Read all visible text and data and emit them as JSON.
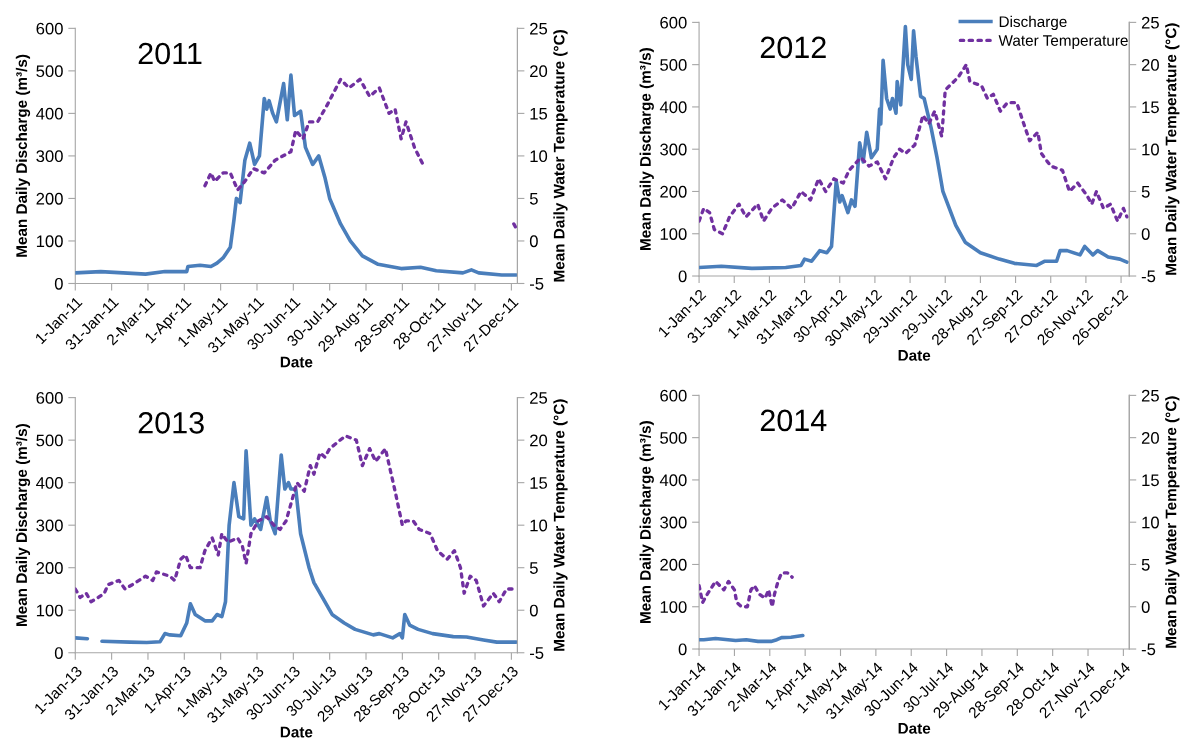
{
  "chart_data": [
    {
      "type": "line",
      "title": "2011",
      "xlabel": "Date",
      "ylabel": "Mean Daily Discharge (m³/s)",
      "y2label": "Mean Daily Water Temperature (°C)",
      "xlim": [
        "2011-01-01",
        "2012-01-01"
      ],
      "ylim": [
        0,
        600
      ],
      "yticks": [
        0,
        100,
        200,
        300,
        400,
        500,
        600
      ],
      "y2lim": [
        -5,
        25
      ],
      "y2ticks": [
        -5,
        0,
        5,
        10,
        15,
        20,
        25
      ],
      "xticks": [
        {
          "value": "2011-01-01",
          "label": "1-Jan-11"
        },
        {
          "value": "2011-01-31",
          "label": "31-Jan-11"
        },
        {
          "value": "2011-03-02",
          "label": "2-Mar-11"
        },
        {
          "value": "2011-04-01",
          "label": "1-Apr-11"
        },
        {
          "value": "2011-05-01",
          "label": "1-May-11"
        },
        {
          "value": "2011-05-31",
          "label": "31-May-11"
        },
        {
          "value": "2011-06-30",
          "label": "30-Jun-11"
        },
        {
          "value": "2011-07-30",
          "label": "30-Jul-11"
        },
        {
          "value": "2011-08-29",
          "label": "29-Aug-11"
        },
        {
          "value": "2011-09-28",
          "label": "28-Sep-11"
        },
        {
          "value": "2011-10-28",
          "label": "28-Oct-11"
        },
        {
          "value": "2011-11-27",
          "label": "27-Nov-11"
        },
        {
          "value": "2011-12-27",
          "label": "27-Dec-11"
        }
      ],
      "series": [
        {
          "color": "#4a7ebb",
          "line_style": "solid",
          "x": [
            "2011-01-01",
            "2011-01-22",
            "2011-02-28",
            "2011-03-16",
            "2011-04-03",
            "2011-04-04",
            "2011-04-14",
            "2011-04-23",
            "2011-04-28",
            "2011-05-03",
            "2011-05-09",
            "2011-05-12",
            "2011-05-14",
            "2011-05-17",
            "2011-05-21",
            "2011-05-25",
            "2011-05-29",
            "2011-06-02",
            "2011-06-06",
            "2011-06-08",
            "2011-06-10",
            "2011-06-13",
            "2011-06-16",
            "2011-06-22",
            "2011-06-25",
            "2011-06-28",
            "2011-07-01",
            "2011-07-06",
            "2011-07-10",
            "2011-07-16",
            "2011-07-21",
            "2011-07-26",
            "2011-07-30",
            "2011-08-08",
            "2011-08-16",
            "2011-08-26",
            "2011-09-08",
            "2011-09-27",
            "2011-10-13",
            "2011-10-26",
            "2011-11-17",
            "2011-11-24",
            "2011-11-30",
            "2011-12-19",
            "2011-12-31"
          ],
          "values": [
            25,
            28,
            22,
            28,
            28,
            40,
            43,
            40,
            48,
            60,
            85,
            150,
            200,
            190,
            290,
            330,
            280,
            300,
            435,
            410,
            430,
            400,
            380,
            470,
            385,
            490,
            395,
            405,
            320,
            280,
            300,
            250,
            200,
            140,
            100,
            65,
            45,
            35,
            38,
            30,
            25,
            32,
            25,
            20,
            20
          ]
        },
        {
          "color": "#7030a0",
          "line_style": "dotted",
          "axis": "y2",
          "x": [
            "2011-04-18",
            "2011-04-23",
            "2011-04-26",
            "2011-05-03",
            "2011-05-09",
            "2011-05-15",
            "2011-05-21",
            "2011-05-28",
            "2011-06-06",
            "2011-06-15",
            "2011-06-28",
            "2011-07-02",
            "2011-07-08",
            "2011-07-13",
            "2011-07-20",
            "2011-07-28",
            "2011-08-08",
            "2011-08-15",
            "2011-08-24",
            "2011-09-01",
            "2011-09-09",
            "2011-09-17",
            "2011-09-22",
            "2011-09-27",
            "2011-10-01",
            "2011-10-08",
            "2011-10-15",
            "2011-11-20",
            "2011-12-29",
            "2011-12-31"
          ],
          "values": [
            6.5,
            8,
            7,
            8,
            8,
            6,
            7,
            8.5,
            8,
            9.5,
            10.5,
            13,
            12,
            14,
            14,
            16,
            19,
            18,
            19,
            17,
            18,
            15,
            15.5,
            12,
            14,
            11,
            9,
            null,
            2,
            1.5
          ]
        }
      ]
    },
    {
      "type": "line",
      "title": "2012",
      "xlabel": "Date",
      "ylabel": "Mean Daily Discharge (m³/s)",
      "y2label": "Mean Daily Water Temperature (°C)",
      "legend": "top right",
      "xlim": [
        "2012-01-01",
        "2013-01-02"
      ],
      "ylim": [
        0,
        600
      ],
      "yticks": [
        0,
        100,
        200,
        300,
        400,
        500,
        600
      ],
      "y2lim": [
        -5,
        25
      ],
      "y2ticks": [
        -5,
        0,
        5,
        10,
        15,
        20,
        25
      ],
      "xticks": [
        {
          "value": "2012-01-01",
          "label": "1-Jan-12"
        },
        {
          "value": "2012-01-31",
          "label": "31-Jan-12"
        },
        {
          "value": "2012-03-01",
          "label": "1-Mar-12"
        },
        {
          "value": "2012-03-31",
          "label": "31-Mar-12"
        },
        {
          "value": "2012-04-30",
          "label": "30-Apr-12"
        },
        {
          "value": "2012-05-30",
          "label": "30-May-12"
        },
        {
          "value": "2012-06-29",
          "label": "29-Jun-12"
        },
        {
          "value": "2012-07-29",
          "label": "29-Jul-12"
        },
        {
          "value": "2012-08-28",
          "label": "28-Aug-12"
        },
        {
          "value": "2012-09-27",
          "label": "27-Sep-12"
        },
        {
          "value": "2012-10-27",
          "label": "27-Oct-12"
        },
        {
          "value": "2012-11-26",
          "label": "26-Nov-12"
        },
        {
          "value": "2012-12-26",
          "label": "26-Dec-12"
        }
      ],
      "series": [
        {
          "name": "Discharge",
          "color": "#4a7ebb",
          "line_style": "solid",
          "x": [
            "2012-01-01",
            "2012-01-20",
            "2012-02-15",
            "2012-03-15",
            "2012-03-28",
            "2012-03-31",
            "2012-04-06",
            "2012-04-13",
            "2012-04-19",
            "2012-04-23",
            "2012-04-27",
            "2012-04-30",
            "2012-05-02",
            "2012-05-07",
            "2012-05-10",
            "2012-05-13",
            "2012-05-17",
            "2012-05-20",
            "2012-05-23",
            "2012-05-27",
            "2012-06-01",
            "2012-06-03",
            "2012-06-04",
            "2012-06-06",
            "2012-06-09",
            "2012-06-12",
            "2012-06-14",
            "2012-06-17",
            "2012-06-18",
            "2012-06-21",
            "2012-06-25",
            "2012-06-27",
            "2012-06-30",
            "2012-07-02",
            "2012-07-04",
            "2012-07-08",
            "2012-07-11",
            "2012-07-17",
            "2012-07-22",
            "2012-07-27",
            "2012-08-07",
            "2012-08-15",
            "2012-08-28",
            "2012-09-13",
            "2012-09-26",
            "2012-10-15",
            "2012-10-22",
            "2012-11-01",
            "2012-11-04",
            "2012-11-10",
            "2012-11-21",
            "2012-11-25",
            "2012-12-02",
            "2012-12-06",
            "2012-12-15",
            "2012-12-25",
            "2012-12-31"
          ],
          "values": [
            20,
            23,
            18,
            20,
            25,
            40,
            35,
            60,
            55,
            70,
            225,
            175,
            190,
            150,
            180,
            165,
            315,
            270,
            340,
            280,
            300,
            395,
            360,
            510,
            420,
            395,
            420,
            385,
            460,
            405,
            590,
            500,
            465,
            580,
            520,
            425,
            420,
            350,
            280,
            200,
            120,
            80,
            55,
            40,
            30,
            25,
            35,
            35,
            60,
            60,
            50,
            70,
            50,
            60,
            45,
            40,
            33
          ]
        },
        {
          "name": "Water Temperature",
          "color": "#7030a0",
          "line_style": "dotted",
          "axis": "y2",
          "x": [
            "2012-01-01",
            "2012-01-05",
            "2012-01-10",
            "2012-01-14",
            "2012-01-21",
            "2012-01-27",
            "2012-02-04",
            "2012-02-10",
            "2012-02-20",
            "2012-02-25",
            "2012-03-03",
            "2012-03-12",
            "2012-03-20",
            "2012-03-28",
            "2012-04-05",
            "2012-04-12",
            "2012-04-18",
            "2012-04-25",
            "2012-05-03",
            "2012-05-08",
            "2012-05-18",
            "2012-05-25",
            "2012-06-01",
            "2012-06-08",
            "2012-06-15",
            "2012-06-20",
            "2012-06-25",
            "2012-07-03",
            "2012-07-10",
            "2012-07-15",
            "2012-07-20",
            "2012-07-26",
            "2012-07-29",
            "2012-08-09",
            "2012-08-16",
            "2012-08-19",
            "2012-08-29",
            "2012-09-03",
            "2012-09-08",
            "2012-09-14",
            "2012-09-20",
            "2012-09-28",
            "2012-10-04",
            "2012-10-09",
            "2012-10-16",
            "2012-10-19",
            "2012-10-27",
            "2012-11-06",
            "2012-11-12",
            "2012-11-19",
            "2012-11-27",
            "2012-12-01",
            "2012-12-05",
            "2012-12-11",
            "2012-12-17",
            "2012-12-23",
            "2012-12-28",
            "2012-12-31"
          ],
          "values": [
            1.5,
            3,
            2.5,
            0.5,
            0,
            2,
            3.5,
            2,
            3.5,
            1.5,
            3,
            4,
            3,
            5,
            4,
            6.5,
            5,
            6.5,
            6,
            7.5,
            9,
            8,
            8.5,
            6.5,
            9,
            10,
            9.5,
            10.5,
            14,
            13,
            14.5,
            11.5,
            17,
            18.5,
            20,
            18,
            17.5,
            16,
            16.5,
            14.5,
            15.5,
            15.5,
            13,
            11,
            12,
            9.5,
            8,
            7.5,
            5,
            6,
            4.5,
            3.5,
            5,
            3,
            3.5,
            1.5,
            3,
            2
          ]
        }
      ]
    },
    {
      "type": "line",
      "title": "2013",
      "xlabel": "Date",
      "ylabel": "Mean Daily Discharge (m³/s)",
      "y2label": "Mean Daily Water Temperature (°C)",
      "xlim": [
        "2013-01-01",
        "2014-01-01"
      ],
      "ylim": [
        0,
        600
      ],
      "yticks": [
        0,
        100,
        200,
        300,
        400,
        500,
        600
      ],
      "y2lim": [
        -5,
        25
      ],
      "y2ticks": [
        -5,
        0,
        5,
        10,
        15,
        20,
        25
      ],
      "xticks": [
        {
          "value": "2013-01-01",
          "label": "1-Jan-13"
        },
        {
          "value": "2013-01-31",
          "label": "31-Jan-13"
        },
        {
          "value": "2013-03-02",
          "label": "2-Mar-13"
        },
        {
          "value": "2013-04-01",
          "label": "1-Apr-13"
        },
        {
          "value": "2013-05-01",
          "label": "1-May-13"
        },
        {
          "value": "2013-05-31",
          "label": "31-May-13"
        },
        {
          "value": "2013-06-30",
          "label": "30-Jun-13"
        },
        {
          "value": "2013-07-30",
          "label": "30-Jul-13"
        },
        {
          "value": "2013-08-29",
          "label": "29-Aug-13"
        },
        {
          "value": "2013-09-28",
          "label": "28-Sep-13"
        },
        {
          "value": "2013-10-28",
          "label": "28-Oct-13"
        },
        {
          "value": "2013-11-27",
          "label": "27-Nov-13"
        },
        {
          "value": "2013-12-27",
          "label": "27-Dec-13"
        }
      ],
      "series": [
        {
          "color": "#4a7ebb",
          "line_style": "solid",
          "x": [
            "2013-01-01",
            "2013-01-11",
            "2013-01-17",
            "2013-01-23",
            "2013-02-15",
            "2013-03-01",
            "2013-03-12",
            "2013-03-16",
            "2013-03-20",
            "2013-03-29",
            "2013-04-03",
            "2013-04-06",
            "2013-04-10",
            "2013-04-18",
            "2013-04-24",
            "2013-04-28",
            "2013-05-02",
            "2013-05-05",
            "2013-05-08",
            "2013-05-12",
            "2013-05-16",
            "2013-05-20",
            "2013-05-22",
            "2013-05-26",
            "2013-05-29",
            "2013-06-03",
            "2013-06-08",
            "2013-06-11",
            "2013-06-15",
            "2013-06-20",
            "2013-06-23",
            "2013-06-26",
            "2013-06-28",
            "2013-07-02",
            "2013-07-06",
            "2013-07-13",
            "2013-07-17",
            "2013-07-24",
            "2013-08-01",
            "2013-08-11",
            "2013-08-20",
            "2013-09-04",
            "2013-09-09",
            "2013-09-20",
            "2013-09-26",
            "2013-09-28",
            "2013-09-30",
            "2013-10-04",
            "2013-10-11",
            "2013-10-23",
            "2013-11-09",
            "2013-11-20",
            "2013-12-04",
            "2013-12-15",
            "2013-12-31"
          ],
          "values": [
            35,
            33,
            null,
            27,
            25,
            24,
            26,
            45,
            42,
            40,
            70,
            115,
            90,
            75,
            75,
            90,
            85,
            120,
            300,
            400,
            320,
            315,
            475,
            300,
            315,
            290,
            365,
            310,
            280,
            465,
            385,
            400,
            385,
            385,
            280,
            200,
            165,
            130,
            90,
            70,
            55,
            42,
            45,
            35,
            45,
            35,
            90,
            65,
            55,
            45,
            38,
            37,
            30,
            25,
            25
          ]
        },
        {
          "color": "#7030a0",
          "line_style": "dotted",
          "axis": "y2",
          "x": [
            "2013-01-01",
            "2013-01-05",
            "2013-01-10",
            "2013-01-14",
            "2013-01-20",
            "2013-01-25",
            "2013-01-28",
            "2013-02-06",
            "2013-02-11",
            "2013-02-17",
            "2013-02-28",
            "2013-03-06",
            "2013-03-09",
            "2013-03-20",
            "2013-03-24",
            "2013-03-29",
            "2013-04-02",
            "2013-04-06",
            "2013-04-14",
            "2013-04-18",
            "2013-04-24",
            "2013-04-29",
            "2013-05-02",
            "2013-05-07",
            "2013-05-15",
            "2013-05-19",
            "2013-05-22",
            "2013-05-26",
            "2013-06-01",
            "2013-06-08",
            "2013-06-14",
            "2013-06-19",
            "2013-06-24",
            "2013-06-28",
            "2013-07-03",
            "2013-07-09",
            "2013-07-14",
            "2013-07-17",
            "2013-07-22",
            "2013-07-26",
            "2013-07-30",
            "2013-08-12",
            "2013-08-21",
            "2013-08-26",
            "2013-09-01",
            "2013-09-06",
            "2013-09-14",
            "2013-09-22",
            "2013-09-25",
            "2013-09-28",
            "2013-10-01",
            "2013-10-07",
            "2013-10-12",
            "2013-10-21",
            "2013-10-27",
            "2013-11-04",
            "2013-11-10",
            "2013-11-15",
            "2013-11-18",
            "2013-11-23",
            "2013-11-28",
            "2013-12-04",
            "2013-12-12",
            "2013-12-17",
            "2013-12-23",
            "2013-12-31"
          ],
          "values": [
            2.5,
            1.5,
            2,
            1,
            1.5,
            2,
            3,
            3.5,
            2.5,
            3,
            4,
            3.5,
            4.5,
            4,
            3.5,
            6,
            6.5,
            5,
            5,
            7,
            8.5,
            6.5,
            9,
            8,
            8.5,
            7.5,
            5.5,
            9,
            10.5,
            11,
            10,
            9.5,
            10.5,
            12.5,
            15,
            14,
            17,
            16,
            18.5,
            18,
            19,
            20.5,
            20,
            17,
            19,
            17.5,
            19,
            14,
            12,
            10,
            10.5,
            10.5,
            9.5,
            9,
            7,
            6,
            7,
            5,
            2,
            4,
            3.5,
            0.5,
            2,
            1,
            2.5,
            2.5
          ]
        }
      ]
    },
    {
      "type": "line",
      "title": "2014",
      "xlabel": "Date",
      "ylabel": "Mean Daily Discharge (m³/s)",
      "y2label": "Mean Daily Water Temperature (°C)",
      "xlim": [
        "2014-01-01",
        "2015-01-01"
      ],
      "ylim": [
        0,
        600
      ],
      "yticks": [
        0,
        100,
        200,
        300,
        400,
        500,
        600
      ],
      "y2lim": [
        -5,
        25
      ],
      "y2ticks": [
        -5,
        0,
        5,
        10,
        15,
        20,
        25
      ],
      "xticks": [
        {
          "value": "2014-01-01",
          "label": "1-Jan-14"
        },
        {
          "value": "2014-01-31",
          "label": "31-Jan-14"
        },
        {
          "value": "2014-03-02",
          "label": "2-Mar-14"
        },
        {
          "value": "2014-04-01",
          "label": "1-Apr-14"
        },
        {
          "value": "2014-05-01",
          "label": "1-May-14"
        },
        {
          "value": "2014-05-31",
          "label": "31-May-14"
        },
        {
          "value": "2014-06-30",
          "label": "30-Jun-14"
        },
        {
          "value": "2014-07-30",
          "label": "30-Jul-14"
        },
        {
          "value": "2014-08-29",
          "label": "29-Aug-14"
        },
        {
          "value": "2014-09-28",
          "label": "28-Sep-14"
        },
        {
          "value": "2014-10-28",
          "label": "28-Oct-14"
        },
        {
          "value": "2014-11-27",
          "label": "27-Nov-14"
        },
        {
          "value": "2014-12-27",
          "label": "27-Dec-14"
        }
      ],
      "series": [
        {
          "color": "#4a7ebb",
          "line_style": "solid",
          "x": [
            "2014-01-01",
            "2014-01-05",
            "2014-01-15",
            "2014-02-01",
            "2014-02-10",
            "2014-02-20",
            "2014-03-03",
            "2014-03-08",
            "2014-03-12",
            "2014-03-20",
            "2014-03-30"
          ],
          "values": [
            22,
            22,
            25,
            20,
            22,
            18,
            18,
            22,
            27,
            28,
            32
          ]
        },
        {
          "color": "#7030a0",
          "line_style": "dotted",
          "axis": "y2",
          "x": [
            "2014-01-01",
            "2014-01-04",
            "2014-01-08",
            "2014-01-15",
            "2014-01-22",
            "2014-01-26",
            "2014-01-31",
            "2014-02-02",
            "2014-02-06",
            "2014-02-11",
            "2014-02-14",
            "2014-02-17",
            "2014-02-21",
            "2014-02-26",
            "2014-03-01",
            "2014-03-04",
            "2014-03-06",
            "2014-03-09",
            "2014-03-12",
            "2014-03-17",
            "2014-03-21"
          ],
          "values": [
            2.5,
            0.5,
            1.5,
            3,
            2,
            3,
            2,
            0.5,
            0,
            0,
            2,
            2.5,
            1.5,
            1,
            2,
            0,
            1.5,
            3,
            4,
            4,
            3.5
          ]
        }
      ]
    }
  ]
}
